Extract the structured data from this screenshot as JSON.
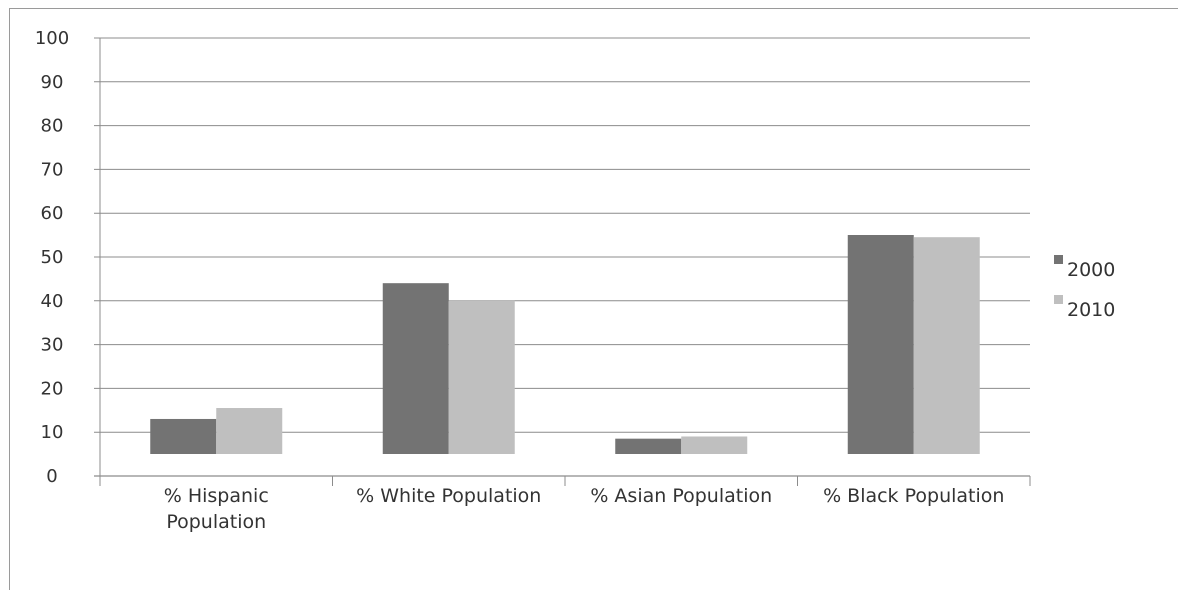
{
  "chart_data": {
    "type": "bar",
    "categories": [
      [
        "% Hispanic",
        "Population"
      ],
      [
        "% White Population"
      ],
      [
        "% Asian Population"
      ],
      [
        "% Black Population"
      ]
    ],
    "series": [
      {
        "name": "2000",
        "values": [
          8,
          39,
          3.5,
          50
        ],
        "color": "#737373"
      },
      {
        "name": "2010",
        "values": [
          10.5,
          35,
          4,
          49.5
        ],
        "color": "#bfbfbf"
      }
    ],
    "yticks": [
      "100",
      "90",
      "80",
      "70",
      "60",
      "50",
      "40",
      "30",
      "20",
      "10",
      "0"
    ],
    "ylim": [
      0,
      100
    ],
    "grid": true,
    "legend_position": "right",
    "title": "",
    "xlabel": "",
    "ylabel": ""
  }
}
